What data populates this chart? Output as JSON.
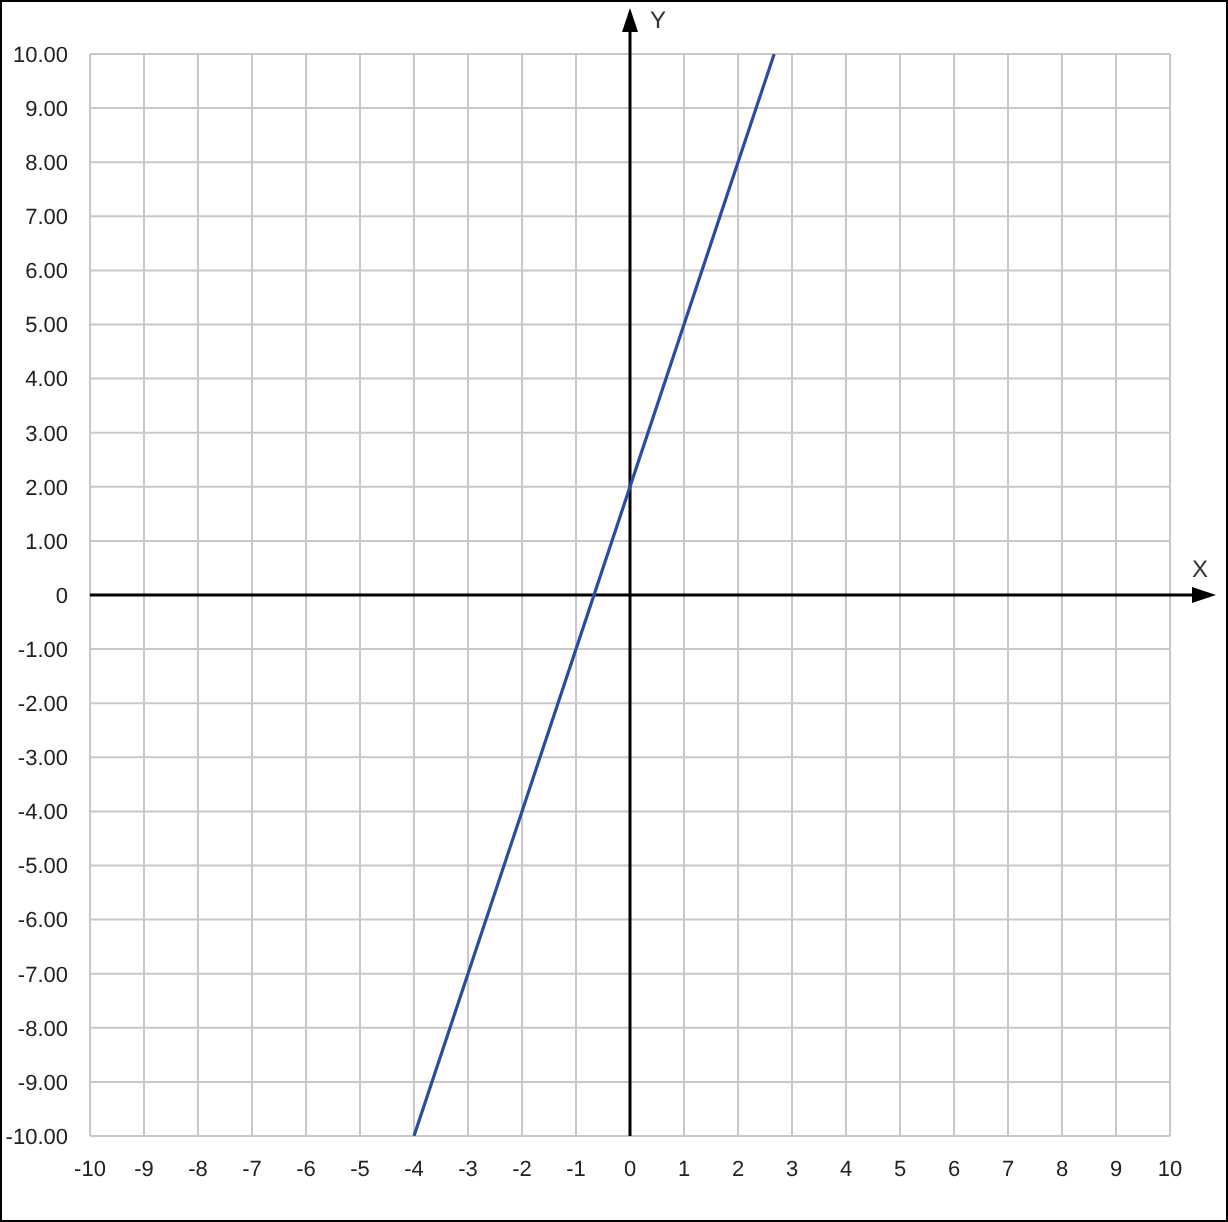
{
  "chart_data": {
    "type": "line",
    "xlabel": "X",
    "ylabel": "Y",
    "x": [
      -4,
      -2,
      0,
      2,
      2.67
    ],
    "series": [
      {
        "color": "#2b4c9c",
        "values": [
          -10,
          -4,
          2,
          8,
          10
        ]
      }
    ],
    "xlim": [
      -10,
      10
    ],
    "ylim": [
      -10,
      10
    ],
    "xticks": [
      -10,
      -9,
      -8,
      -7,
      -6,
      -5,
      -4,
      -3,
      -2,
      -1,
      0,
      1,
      2,
      3,
      4,
      5,
      6,
      7,
      8,
      9,
      10
    ],
    "yticks": [
      {
        "value": -10,
        "label": "-10.00"
      },
      {
        "value": -9,
        "label": "-9.00"
      },
      {
        "value": -8,
        "label": "-8.00"
      },
      {
        "value": -7,
        "label": "-7.00"
      },
      {
        "value": -6,
        "label": "-6.00"
      },
      {
        "value": -5,
        "label": "-5.00"
      },
      {
        "value": -4,
        "label": "-4.00"
      },
      {
        "value": -3,
        "label": "-3.00"
      },
      {
        "value": -2,
        "label": "-2.00"
      },
      {
        "value": -1,
        "label": "-1.00"
      },
      0,
      {
        "value": 1,
        "label": "1.00"
      },
      {
        "value": 2,
        "label": "2.00"
      },
      {
        "value": 3,
        "label": "3.00"
      },
      {
        "value": 4,
        "label": "4.00"
      },
      {
        "value": 5,
        "label": "5.00"
      },
      {
        "value": 6,
        "label": "6.00"
      },
      {
        "value": 7,
        "label": "7.00"
      },
      {
        "value": 8,
        "label": "8.00"
      },
      {
        "value": 9,
        "label": "9.00"
      },
      {
        "value": 10,
        "label": "10.00"
      }
    ],
    "grid": true
  }
}
